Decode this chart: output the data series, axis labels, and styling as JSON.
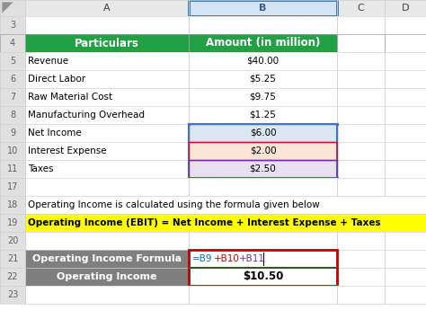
{
  "col_headers": [
    "A",
    "B",
    "C",
    "D"
  ],
  "header_row": [
    "Particulars",
    "Amount (in million)"
  ],
  "data_rows": [
    [
      "Revenue",
      "$40.00"
    ],
    [
      "Direct Labor",
      "$5.25"
    ],
    [
      "Raw Material Cost",
      "$9.75"
    ],
    [
      "Manufacturing Overhead",
      "$1.25"
    ],
    [
      "Net Income",
      "$6.00"
    ],
    [
      "Interest Expense",
      "$2.00"
    ],
    [
      "Taxes",
      "$2.50"
    ]
  ],
  "formula_text": "Operating Income is calculated using the formula given below",
  "highlight_formula": "Operating Income (EBIT) = Net Income + Interest Expense + Taxes",
  "green_header_bg": "#21a044",
  "green_header_fg": "#ffffff",
  "yellow_bg": "#ffff00",
  "yellow_fg": "#000000",
  "gray_bg": "#7f7f7f",
  "gray_fg": "#ffffff",
  "blue_highlight_bg": "#dce6f1",
  "red_highlight_bg": "#fce4d6",
  "purple_highlight_bg": "#e8e0f0",
  "grid_color": "#d0d0d0",
  "dark_grid": "#a0a0a0",
  "background": "#ffffff",
  "formula_colors": {
    "B9": "#0070c0",
    "B10": "#c00000",
    "B11": "#7030a0"
  },
  "blue_sel_color": "#4472c4",
  "red_border_color": "#c00000",
  "green_line_color": "#375623"
}
